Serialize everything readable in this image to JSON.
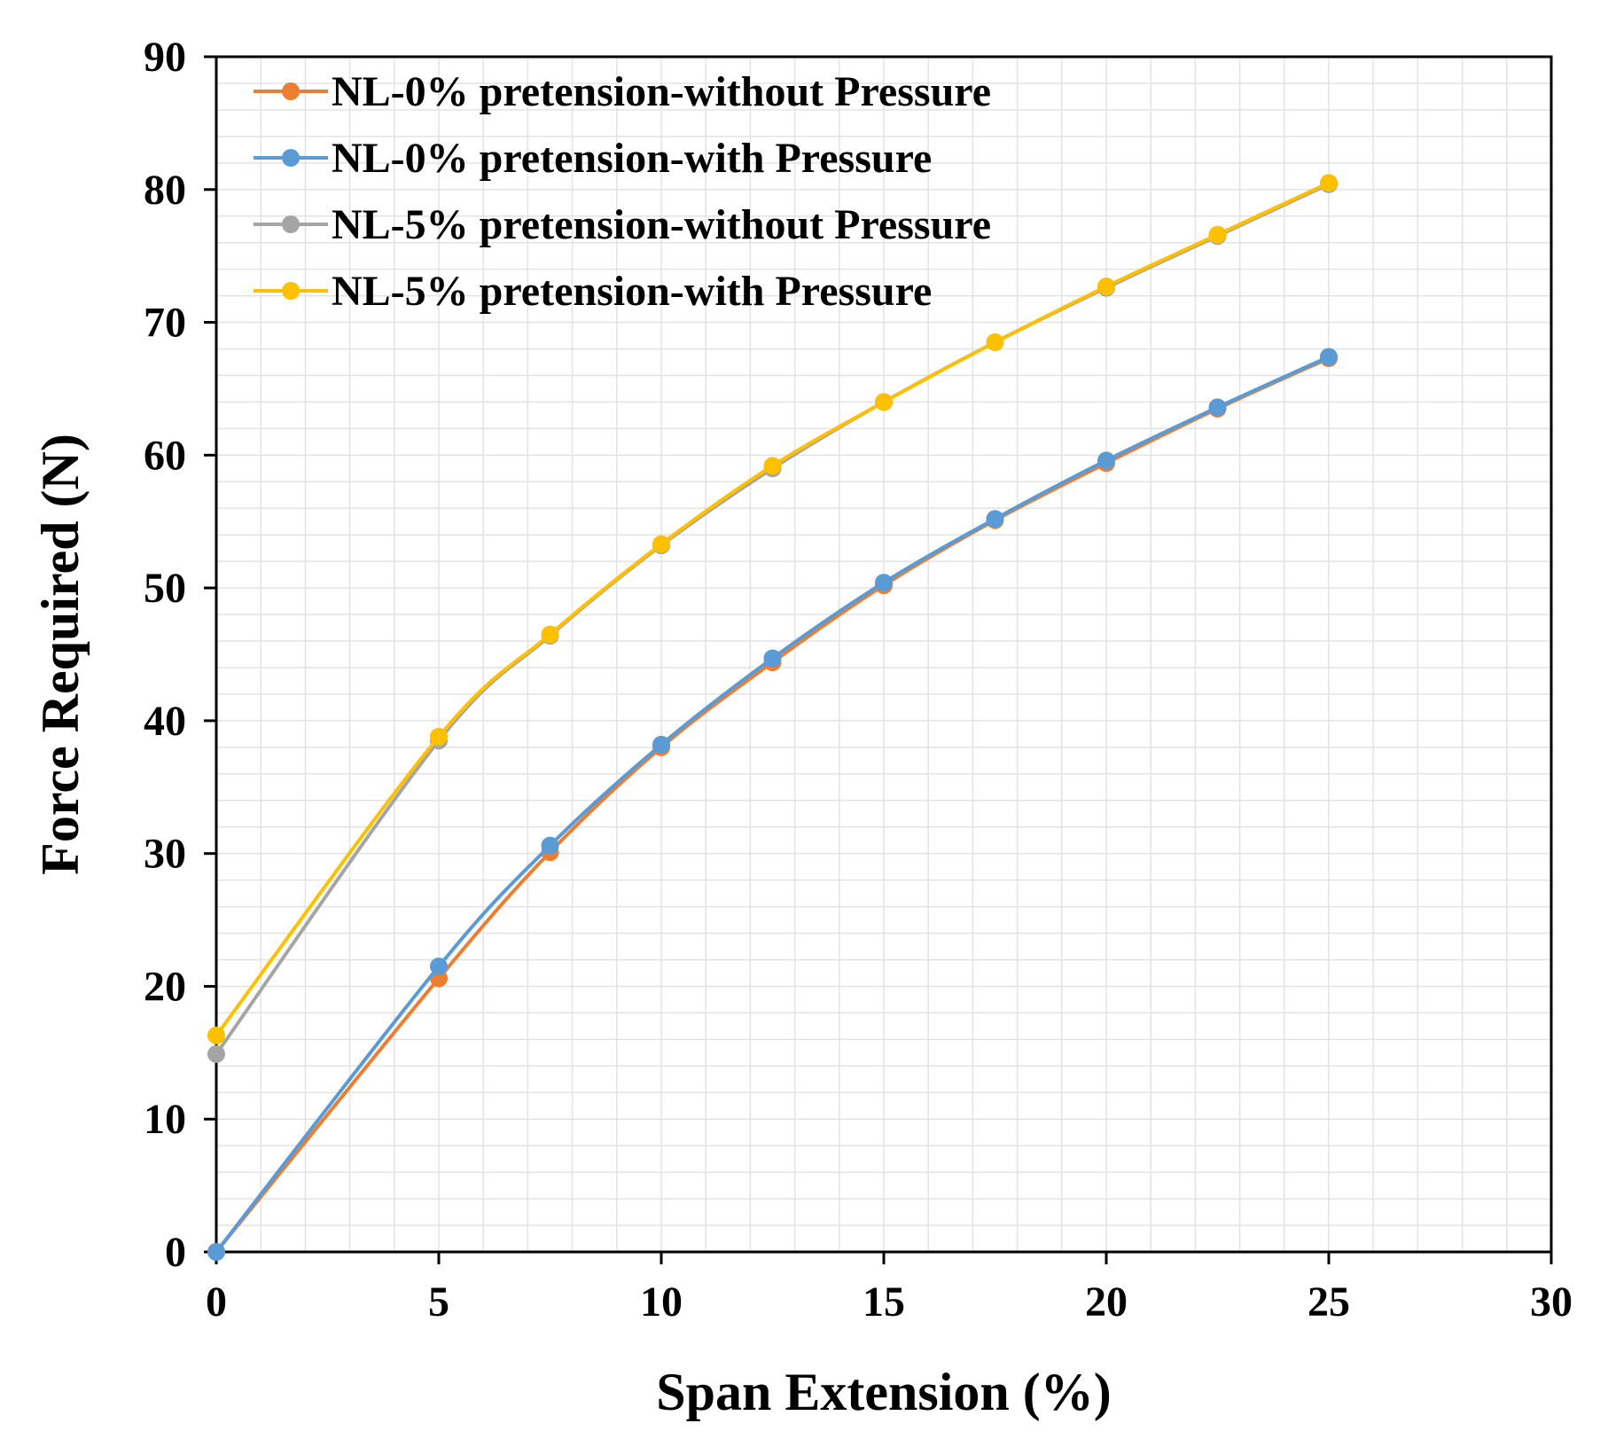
{
  "chart_data": {
    "type": "line",
    "title": "",
    "xlabel": "Span Extension (%)",
    "ylabel": "Force Required (N)",
    "xlim": [
      0,
      30
    ],
    "ylim": [
      0,
      90
    ],
    "x_ticks": [
      0,
      5,
      10,
      15,
      20,
      25,
      30
    ],
    "y_ticks": [
      0,
      10,
      20,
      30,
      40,
      50,
      60,
      70,
      80,
      90
    ],
    "x_tick_labels": [
      "0",
      "5",
      "10",
      "15",
      "20",
      "25",
      "30"
    ],
    "y_tick_labels": [
      "0",
      "10",
      "20",
      "30",
      "40",
      "50",
      "60",
      "70",
      "80",
      "90"
    ],
    "grid": true,
    "legend_position": "top-left",
    "x": [
      0,
      5,
      7.5,
      10,
      12.5,
      15,
      17.5,
      20,
      22.5,
      25
    ],
    "series": [
      {
        "name": "NL-0% pretension-without Pressure",
        "color": "#ED7D31",
        "values": [
          0,
          20.6,
          30.1,
          38.0,
          44.4,
          50.2,
          55.1,
          59.4,
          63.5,
          67.3
        ]
      },
      {
        "name": "NL-0% pretension-with Pressure",
        "color": "#5B9BD5",
        "values": [
          0,
          21.5,
          30.6,
          38.2,
          44.7,
          50.4,
          55.2,
          59.6,
          63.6,
          67.4
        ]
      },
      {
        "name": "NL-5% pretension-without Pressure",
        "color": "#A5A5A5",
        "values": [
          14.9,
          38.5,
          46.4,
          53.2,
          59.0,
          64.0,
          68.5,
          72.6,
          76.5,
          80.4
        ]
      },
      {
        "name": "NL-5% pretension-with Pressure",
        "color": "#FFC000",
        "values": [
          16.3,
          38.8,
          46.5,
          53.3,
          59.2,
          64.0,
          68.5,
          72.7,
          76.6,
          80.5
        ]
      }
    ]
  }
}
